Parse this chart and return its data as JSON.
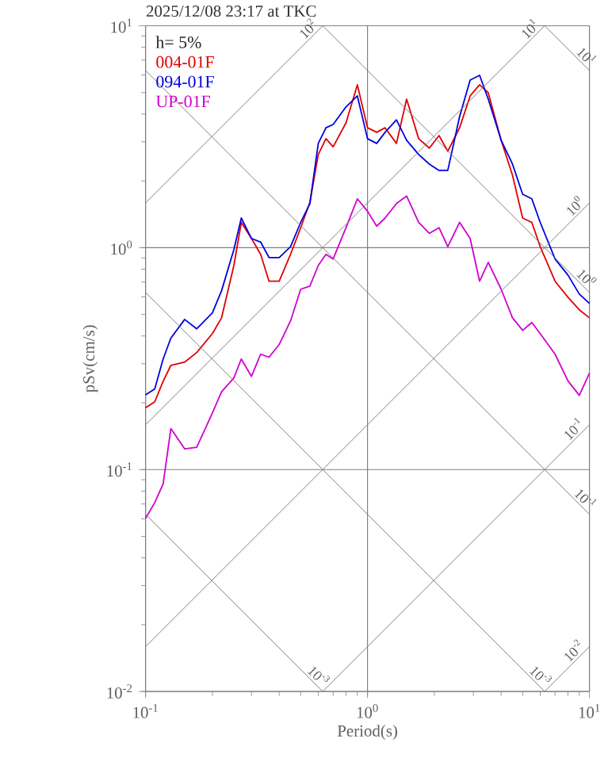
{
  "chart_data": {
    "type": "line",
    "title": "2025/12/08 23:17 at TKC",
    "xlabel": "Period(s)",
    "ylabel": "pSv(cm/s)",
    "annotations": [
      "h= 5%"
    ],
    "log": "xy",
    "grid": true,
    "legend": "top left",
    "xlim": [
      0.1,
      10
    ],
    "ylim": [
      0.01,
      10
    ],
    "xticks": [
      {
        "value": 0.1,
        "label": "10$^{-1}$"
      },
      {
        "value": 1,
        "label": "10$^{0}$"
      },
      {
        "value": 10,
        "label": "10$^{1}$"
      }
    ],
    "yticks": [
      {
        "value": 0.01,
        "label": "10$^{-2}$"
      },
      {
        "value": 0.1,
        "label": "10$^{-1}$"
      },
      {
        "value": 1,
        "label": "10$^{0}$"
      },
      {
        "value": 10,
        "label": "10$^{1}$"
      }
    ],
    "x": [
      0.1,
      0.11,
      0.12,
      0.13,
      0.15,
      0.17,
      0.2,
      0.22,
      0.25,
      0.27,
      0.3,
      0.33,
      0.36,
      0.4,
      0.45,
      0.5,
      0.55,
      0.6,
      0.65,
      0.7,
      0.8,
      0.9,
      1,
      1.1,
      1.2,
      1.35,
      1.5,
      1.7,
      1.9,
      2.1,
      2.3,
      2.6,
      2.9,
      3.2,
      3.5,
      4,
      4.5,
      5,
      5.5,
      6,
      7,
      8,
      9,
      10
    ],
    "series": [
      {
        "name": "004-01F",
        "color": "#e00000",
        "values": [
          0.19,
          0.202,
          0.25,
          0.295,
          0.305,
          0.337,
          0.41,
          0.483,
          0.832,
          1.3,
          1.1,
          0.933,
          0.706,
          0.706,
          0.933,
          1.23,
          1.6,
          2.63,
          3.1,
          2.85,
          3.65,
          5.42,
          3.47,
          3.31,
          3.47,
          2.95,
          4.67,
          3.1,
          2.81,
          3.2,
          2.72,
          3.47,
          4.83,
          5.42,
          4.99,
          3.05,
          2.12,
          1.36,
          1.3,
          1.01,
          0.706,
          0.598,
          0.525,
          0.483
        ]
      },
      {
        "name": "094-01F",
        "color": "#0000e0",
        "values": [
          0.217,
          0.231,
          0.315,
          0.391,
          0.475,
          0.431,
          0.508,
          0.64,
          0.98,
          1.36,
          1.1,
          1.06,
          0.903,
          0.903,
          1.01,
          1.3,
          1.58,
          2.95,
          3.47,
          3.59,
          4.31,
          4.83,
          3.1,
          2.95,
          3.31,
          3.77,
          3.05,
          2.63,
          2.38,
          2.23,
          2.23,
          3.9,
          5.69,
          5.98,
          4.67,
          3.05,
          2.38,
          1.74,
          1.66,
          1.3,
          0.889,
          0.753,
          0.618,
          0.561
        ]
      },
      {
        "name": "UP-01F",
        "color": "#d000d0",
        "values": [
          0.0603,
          0.071,
          0.0861,
          0.153,
          0.124,
          0.126,
          0.18,
          0.224,
          0.259,
          0.315,
          0.263,
          0.331,
          0.321,
          0.366,
          0.468,
          0.65,
          0.671,
          0.832,
          0.933,
          0.889,
          1.23,
          1.66,
          1.46,
          1.25,
          1.36,
          1.58,
          1.71,
          1.3,
          1.16,
          1.23,
          1.01,
          1.3,
          1.1,
          0.706,
          0.859,
          0.65,
          0.483,
          0.424,
          0.46,
          0.41,
          0.331,
          0.251,
          0.216,
          0.272
        ]
      },
      {
        "type": "line",
        "name": "10$^{2}$",
        "color": "#808080",
        "x": [
          0.1,
          0.6283
        ],
        "values": [
          1.5915,
          10
        ]
      },
      {
        "type": "line",
        "name": "10$^{1}$",
        "color": "#808080",
        "x": [
          0.1,
          6.283
        ],
        "values": [
          0.15915,
          10
        ]
      },
      {
        "type": "line",
        "name": "10$^{0}$",
        "color": "#808080",
        "x": [
          0.1,
          10
        ],
        "values": [
          0.015915,
          1.5915
        ]
      },
      {
        "type": "line",
        "name": "10$^{-1}$",
        "color": "#808080",
        "x": [
          0.6283,
          10
        ],
        "values": [
          0.01,
          0.15915
        ]
      },
      {
        "type": "line",
        "name": "10$^{-2}$",
        "color": "#808080",
        "x": [
          6.283,
          10
        ],
        "values": [
          0.01,
          0.015915
        ]
      },
      {
        "type": "line",
        "name": "10$^{1}$",
        "color": "#808080",
        "x": [
          6.283,
          10
        ],
        "values": [
          10,
          6.283
        ]
      },
      {
        "type": "line",
        "name": "10$^{0}$",
        "color": "#808080",
        "x": [
          0.6283,
          10
        ],
        "values": [
          10,
          0.6283
        ]
      },
      {
        "type": "line",
        "name": "10$^{-1}$",
        "color": "#808080",
        "x": [
          0.1,
          10
        ],
        "values": [
          6.283,
          0.06283
        ]
      },
      {
        "type": "line",
        "name": "10$^{-3}$",
        "color": "#808080",
        "x": [
          0.1,
          6.283
        ],
        "values": [
          0.6283,
          0.01
        ]
      },
      {
        "type": "line",
        "name": "10$^{-3}$",
        "color": "#808080",
        "x": [
          0.1,
          0.6283
        ],
        "values": [
          0.06283,
          0.01
        ]
      }
    ]
  }
}
